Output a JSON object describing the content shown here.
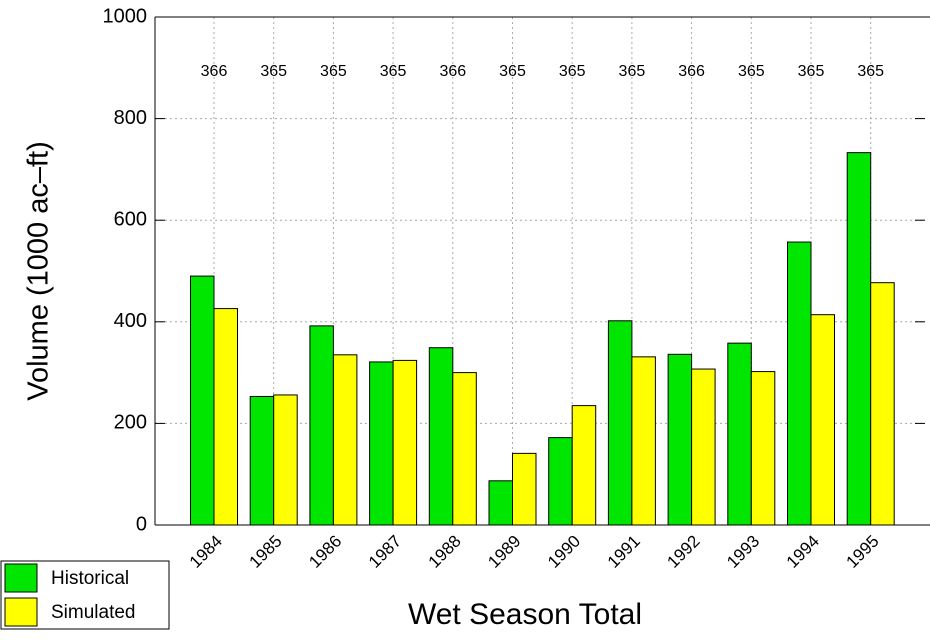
{
  "chart_data": {
    "type": "bar",
    "x_label": "Wet Season Total",
    "y_label": "Volume (1000 ac–ft)",
    "categories": [
      "1984",
      "1985",
      "1986",
      "1987",
      "1988",
      "1989",
      "1990",
      "1991",
      "1992",
      "1993",
      "1994",
      "1995"
    ],
    "series": [
      {
        "name": "Historical",
        "color": "#00e600",
        "values": [
          490,
          253,
          392,
          321,
          349,
          87,
          172,
          402,
          336,
          358,
          557,
          733
        ]
      },
      {
        "name": "Simulated",
        "color": "#ffff00",
        "values": [
          426,
          256,
          335,
          324,
          300,
          141,
          235,
          331,
          307,
          302,
          414,
          477
        ]
      }
    ],
    "annotations": [
      366,
      365,
      365,
      365,
      366,
      365,
      365,
      365,
      366,
      365,
      365,
      365
    ],
    "ylim": [
      0,
      1000
    ],
    "yticks": [
      0,
      200,
      400,
      600,
      800,
      1000
    ],
    "grid": true,
    "legend": "lower left"
  }
}
